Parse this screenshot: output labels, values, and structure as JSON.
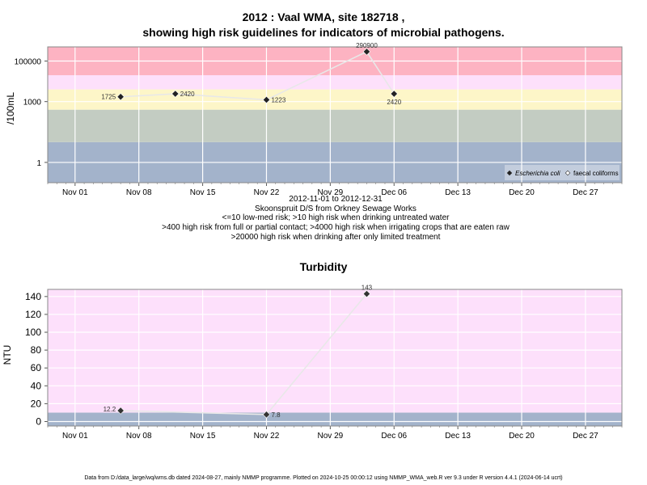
{
  "header": {
    "title_line1": "2012 : Vaal WMA, site 182718 ,",
    "title_line2": "showing high risk guidelines for indicators of microbial pathogens."
  },
  "chart1_caption": {
    "date_range": "2012-11-01 to 2012-12-31",
    "site_name": "Skoonspruit D/S from Orkney Sewage Works",
    "line1": "<=10 low-med risk; >10 high risk when drinking untreated water",
    "line2": ">400 high risk from full or partial contact; >4000 high risk when irrigating crops that are eaten raw",
    "line3": ">20000 high risk when drinking after only limited treatment"
  },
  "turbidity_title": "Turbidity",
  "footer": "Data from D:/data_large/wq/wms.db dated 2024-08-27, mainly NMMP programme. Plotted on 2024-10-25 00:00:12 using NMMP_WMA_web.R ver 9.3 under R version 4.4.1 (2024-06-14 ucrt)",
  "chart_data": [
    {
      "type": "scatter",
      "ylabel": "/100mL",
      "y_scale": "log",
      "y_ticks": [
        1,
        1000,
        100000
      ],
      "y_tick_labels": [
        "1",
        "1000",
        "100000"
      ],
      "x_ticks": [
        "Nov 01",
        "Nov 08",
        "Nov 15",
        "Nov 22",
        "Nov 29",
        "Dec 06",
        "Dec 13",
        "Dec 20",
        "Dec 27"
      ],
      "x_range": [
        "2012-10-29",
        "2012-12-31"
      ],
      "ylim": [
        0.1,
        500000
      ],
      "grid": true,
      "legend_position": "bottom-right",
      "bands": [
        {
          "from": 0.1,
          "to": 10,
          "color": "#a3b3cb"
        },
        {
          "from": 10,
          "to": 400,
          "color": "#c3ccc2"
        },
        {
          "from": 400,
          "to": 4000,
          "color": "#fdf6c8"
        },
        {
          "from": 4000,
          "to": 20000,
          "color": "#fde0fb"
        },
        {
          "from": 20000,
          "to": 500000,
          "color": "#fdb3c2"
        }
      ],
      "series": [
        {
          "name": "Escherichia coli",
          "points": [
            {
              "date": "2012-11-06",
              "value": 1725,
              "label": "1725"
            },
            {
              "date": "2012-11-12",
              "value": 2420,
              "label": "2420"
            },
            {
              "date": "2012-11-22",
              "value": 1223,
              "label": "1223"
            },
            {
              "date": "2012-12-03",
              "value": 290900,
              "label": "290900"
            },
            {
              "date": "2012-12-06",
              "value": 2420,
              "label": "2420"
            }
          ]
        }
      ],
      "legend": [
        "Escherichia coli",
        "faecal coliforms"
      ]
    },
    {
      "type": "line",
      "title": "Turbidity",
      "ylabel": "NTU",
      "y_ticks": [
        0,
        20,
        40,
        60,
        80,
        100,
        120,
        140
      ],
      "x_ticks": [
        "Nov 01",
        "Nov 08",
        "Nov 15",
        "Nov 22",
        "Nov 29",
        "Dec 06",
        "Dec 13",
        "Dec 20",
        "Dec 27"
      ],
      "x_range": [
        "2012-10-29",
        "2012-12-31"
      ],
      "ylim": [
        -5,
        148
      ],
      "grid": true,
      "bands": [
        {
          "from": -5,
          "to": 10,
          "color": "#a3b3cb"
        },
        {
          "from": 10,
          "to": 148,
          "color": "#fde0fb"
        }
      ],
      "series": [
        {
          "points": [
            {
              "date": "2012-11-06",
              "value": 12.2,
              "label": "12.2"
            },
            {
              "date": "2012-11-22",
              "value": 7.8,
              "label": "7.8"
            },
            {
              "date": "2012-12-03",
              "value": 143,
              "label": "143"
            }
          ]
        }
      ]
    }
  ]
}
